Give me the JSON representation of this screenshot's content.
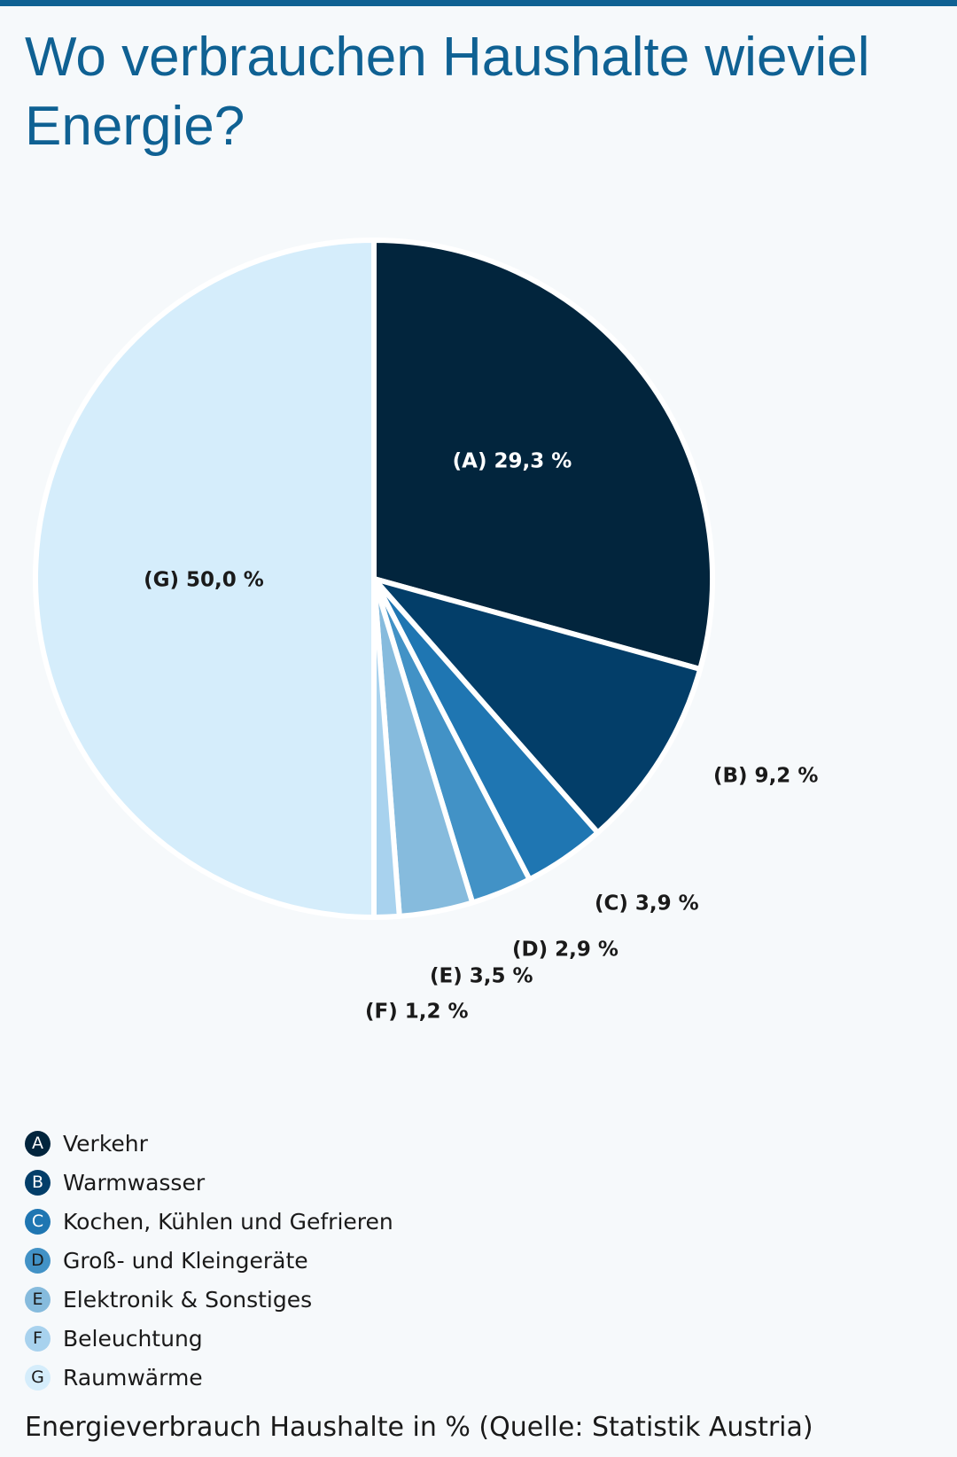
{
  "title": "Wo verbrauchen Haushalte wieviel Energie?",
  "caption": "Energieverbrauch Haushalte in % (Quelle: Statistik Austria)",
  "chart_data": {
    "type": "pie",
    "title": "Wo verbrauchen Haushalte wieviel Energie?",
    "unit": "%",
    "slices": [
      {
        "id": "A",
        "label": "Verkehr",
        "value": 29.3,
        "value_label": "(A) 29,3 %",
        "color": "#02253d",
        "badge_text_color": "#ffffff",
        "label_color": "#ffffff"
      },
      {
        "id": "B",
        "label": "Warmwasser",
        "value": 9.2,
        "value_label": "(B) 9,2 %",
        "color": "#033e69",
        "badge_text_color": "#ffffff",
        "label_color": "#1a1a1a"
      },
      {
        "id": "C",
        "label": "Kochen, Kühlen und Gefrieren",
        "value": 3.9,
        "value_label": "(C) 3,9 %",
        "color": "#1f76b2",
        "badge_text_color": "#ffffff",
        "label_color": "#1a1a1a"
      },
      {
        "id": "D",
        "label": "Groß- und Kleingeräte",
        "value": 2.9,
        "value_label": "(D) 2,9 %",
        "color": "#4292c6",
        "badge_text_color": "#1a1a1a",
        "label_color": "#1a1a1a"
      },
      {
        "id": "E",
        "label": "Elektronik & Sonstiges",
        "value": 3.5,
        "value_label": "(E) 3,5 %",
        "color": "#86bbdd",
        "badge_text_color": "#1a1a1a",
        "label_color": "#1a1a1a"
      },
      {
        "id": "F",
        "label": "Beleuchtung",
        "value": 1.2,
        "value_label": "(F) 1,2 %",
        "color": "#a8d2ee",
        "badge_text_color": "#1a1a1a",
        "label_color": "#1a1a1a"
      },
      {
        "id": "G",
        "label": "Raumwärme",
        "value": 50.0,
        "value_label": "(G) 50,0 %",
        "color": "#d5edfb",
        "badge_text_color": "#1a1a1a",
        "label_color": "#1a1a1a"
      }
    ]
  }
}
